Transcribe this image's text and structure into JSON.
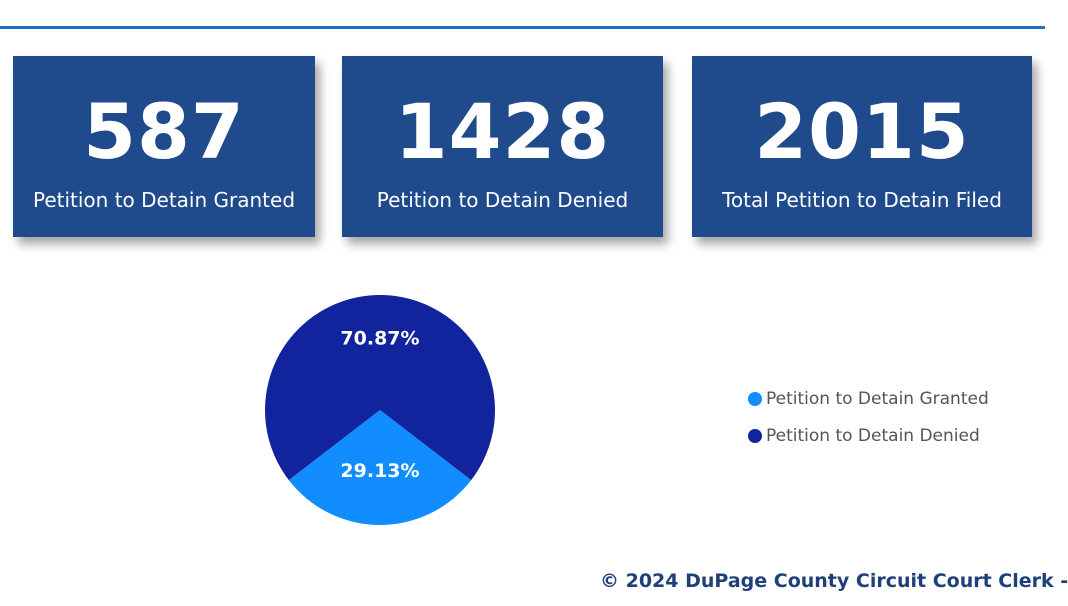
{
  "kpis": [
    {
      "value": "587",
      "label": "Petition to Detain Granted"
    },
    {
      "value": "1428",
      "label": "Petition to Detain Denied"
    },
    {
      "value": "2015",
      "label": "Total Petition to Detain Filed"
    }
  ],
  "chart_data": {
    "type": "pie",
    "categories": [
      "Petition to Detain Granted",
      "Petition to Detain Denied"
    ],
    "values": [
      29.13,
      70.87
    ],
    "data_labels": [
      "29.13%",
      "70.87%"
    ],
    "colors": [
      "#118dff",
      "#12239e"
    ],
    "legend_position": "right"
  },
  "legend": [
    {
      "label": "Petition to Detain Granted",
      "color": "#118dff"
    },
    {
      "label": "Petition to Detain Denied",
      "color": "#12239e"
    }
  ],
  "footer": "© 2024 DuPage County Circuit Court Clerk -"
}
